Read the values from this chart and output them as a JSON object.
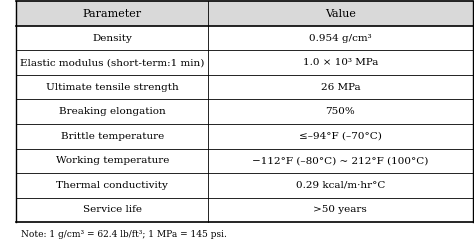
{
  "headers": [
    "Parameter",
    "Value"
  ],
  "rows": [
    [
      "Density",
      "0.954 g/cm³"
    ],
    [
      "Elastic modulus (short-term:1 min)",
      "1.0 × 10³ MPa"
    ],
    [
      "Ultimate tensile strength",
      "26 MPa"
    ],
    [
      "Breaking elongation",
      "750%"
    ],
    [
      "Brittle temperature",
      "≤–94°F (–70°C)"
    ],
    [
      "Working temperature",
      "−112°F (–80°C) ~ 212°F (100°C)"
    ],
    [
      "Thermal conductivity",
      "0.29 kcal/m·hr°C"
    ],
    [
      "Service life",
      ">50 years"
    ]
  ],
  "note": "Note: 1 g/cm³ = 62.4 lb/ft³; 1 MPa = 145 psi.",
  "bg_color": "#ffffff",
  "header_bg": "#d9d9d9",
  "line_color": "#000000",
  "text_color": "#000000",
  "font_size": 7.5,
  "header_font_size": 8.0,
  "note_font_size": 6.5,
  "col_split": 0.42
}
